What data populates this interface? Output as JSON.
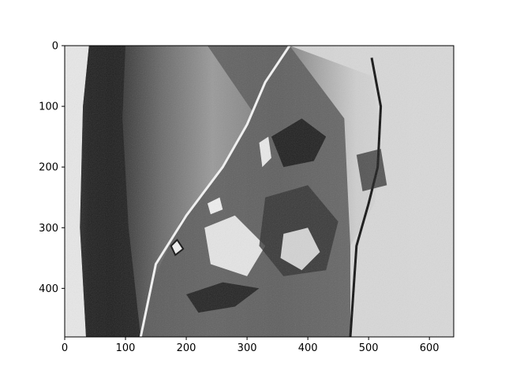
{
  "chart_data": {
    "type": "heatmap",
    "colormap": "gray",
    "title": "",
    "xlabel": "",
    "ylabel": "",
    "xlim": [
      0,
      640
    ],
    "ylim": [
      480,
      0
    ],
    "xticks": [
      0,
      100,
      200,
      300,
      400,
      500,
      600
    ],
    "yticks": [
      0,
      100,
      200,
      300,
      400
    ],
    "grid": false,
    "legend": "none",
    "image_size": {
      "rows": 480,
      "cols": 640
    },
    "contours_description": "Wrapped phase map: dark smooth gradient on the left third, noisy fringe boundary running diagonally from around (370, 0) down to (130, 480), swirling light/dark interference patterns in the center-right region, lighter gray background on the far right.",
    "colors": {
      "dark": "#111111",
      "mid": "#6a6a6a",
      "light": "#f2f2f2"
    }
  }
}
